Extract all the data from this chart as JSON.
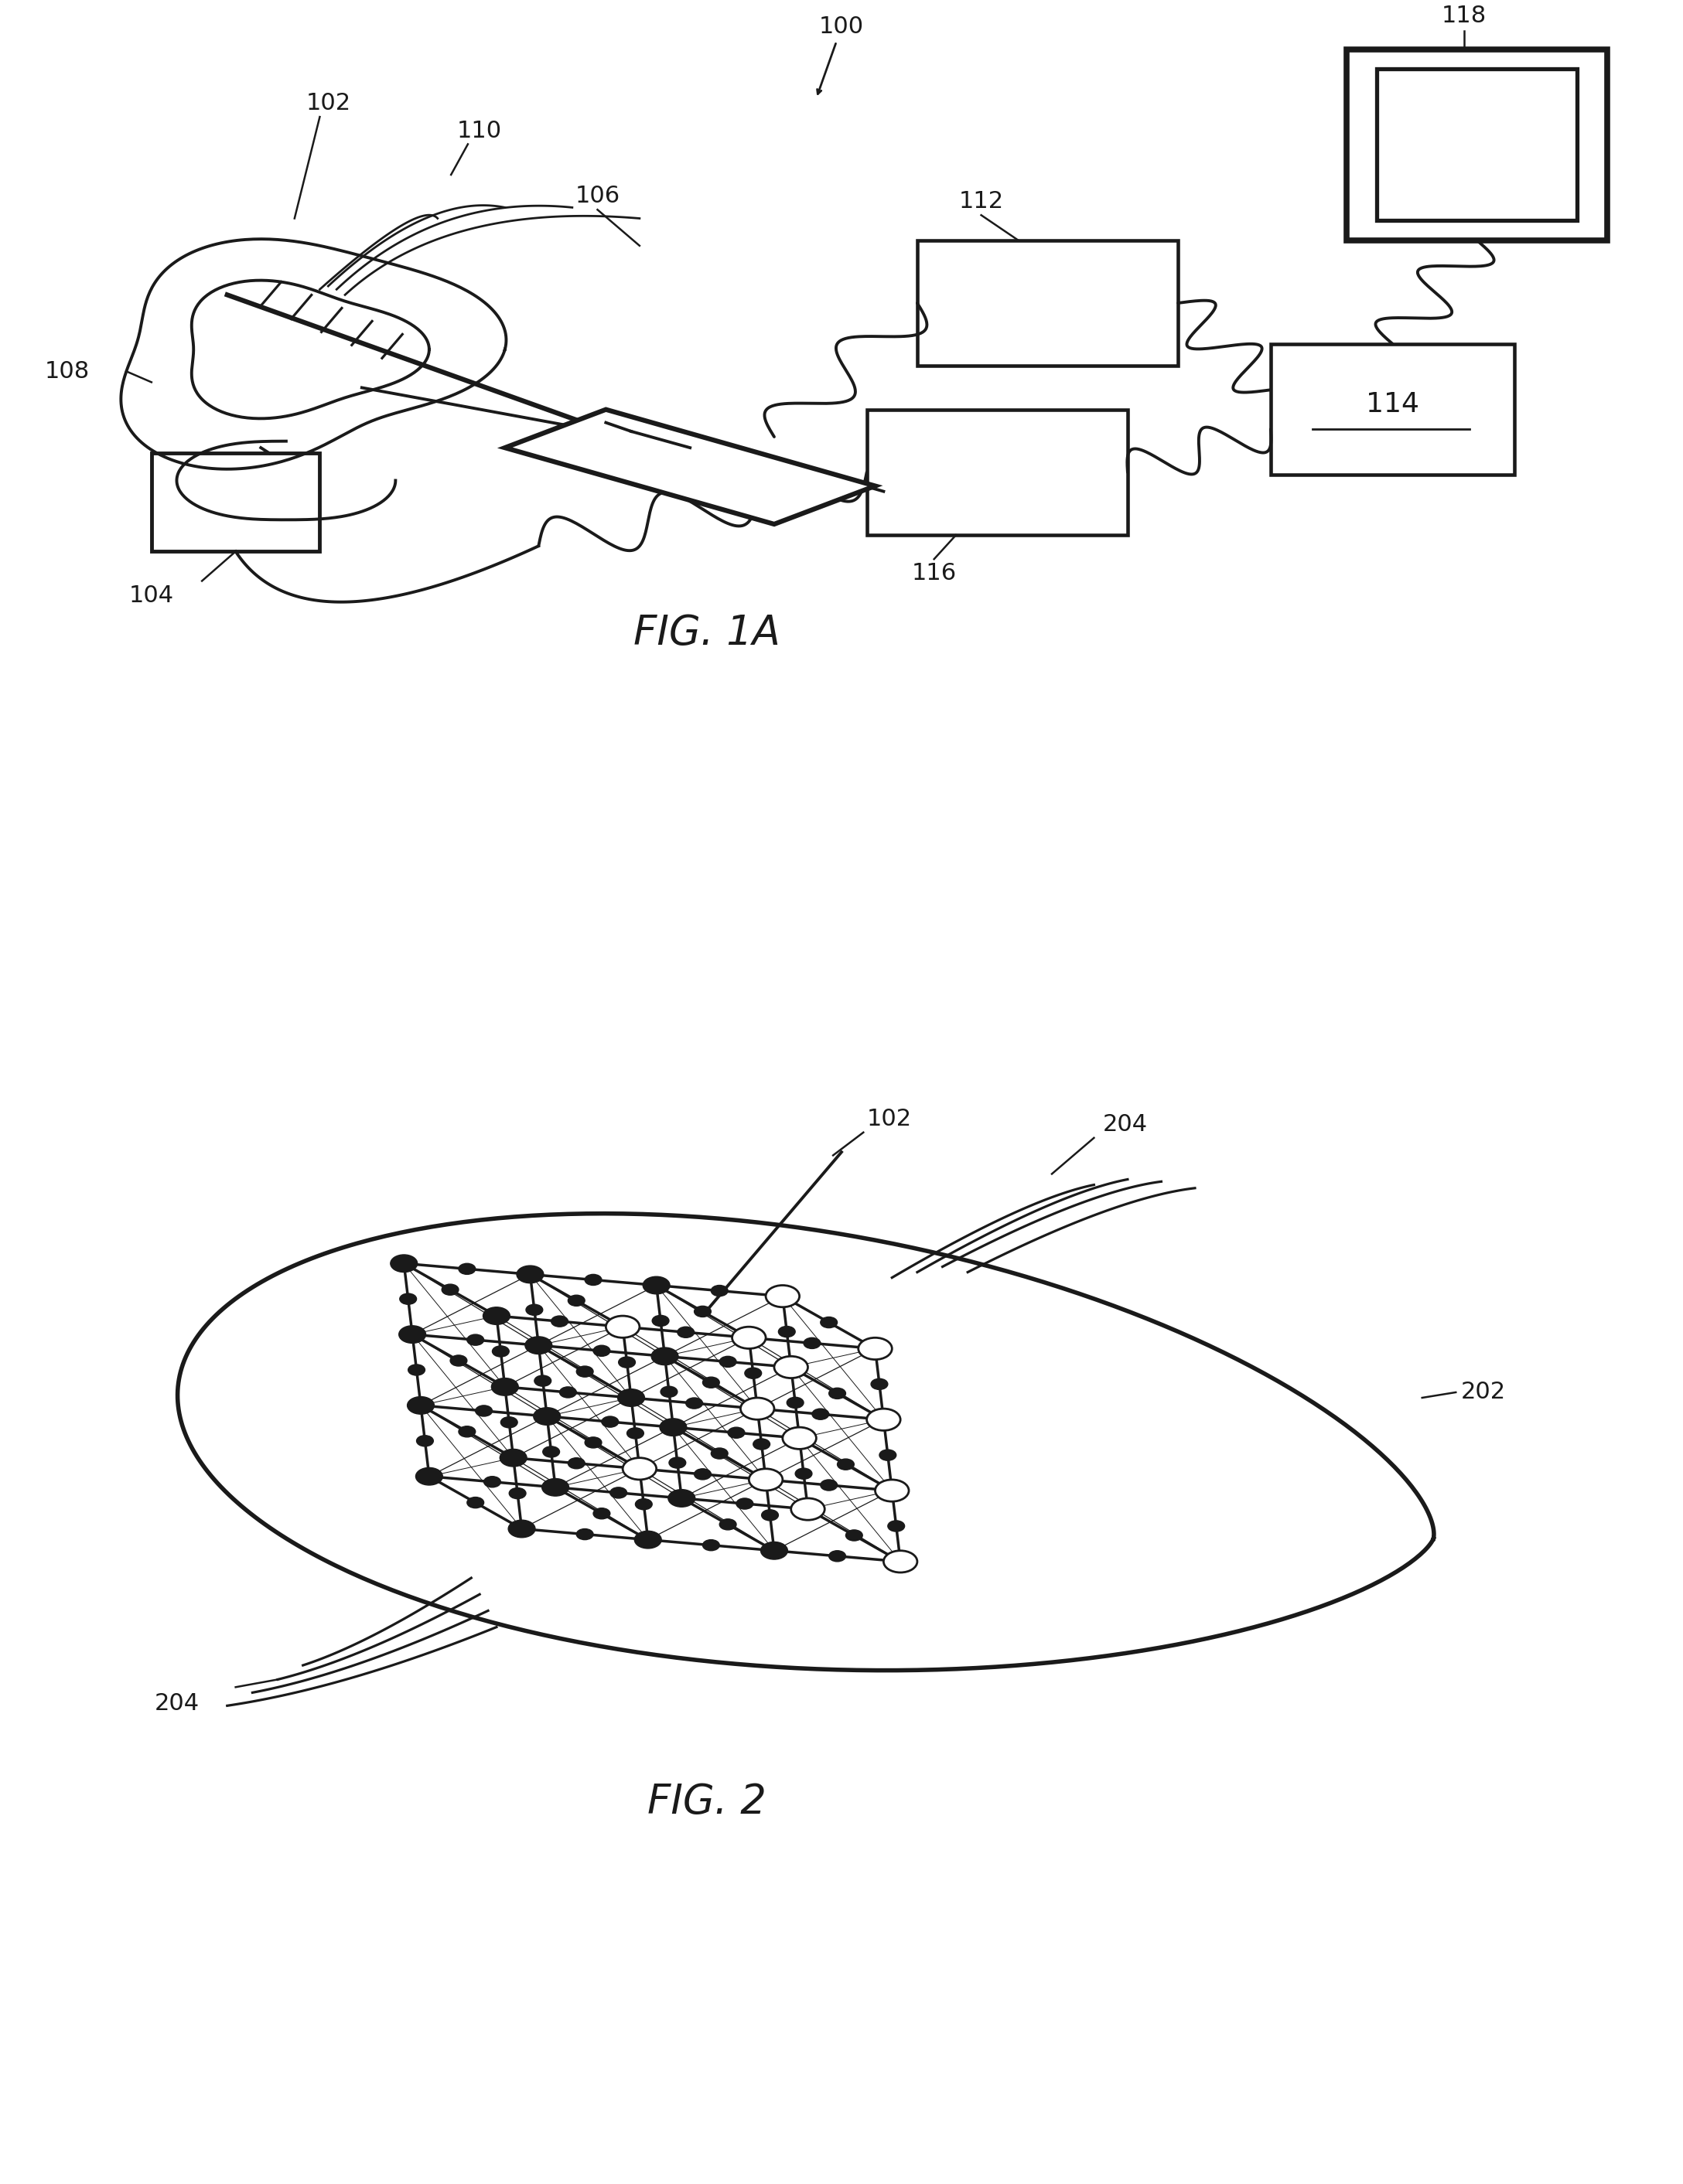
{
  "bg_color": "#ffffff",
  "lc": "#1a1a1a",
  "lw_main": 2.8,
  "lw_thick": 4.5,
  "fig1a_title": "FIG. 1A",
  "fig2_title": "FIG. 2",
  "font_label": 22,
  "font_title": 38
}
